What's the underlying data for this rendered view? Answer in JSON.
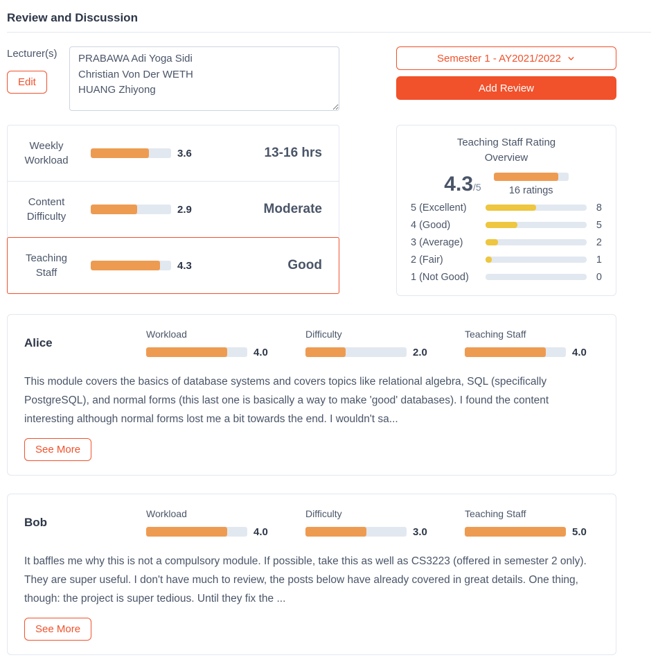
{
  "colors": {
    "accent": "#f1512b",
    "bar-orange": "#ee9b52",
    "bar-yellow": "#eec63f",
    "track": "#e2e8f0",
    "border": "#e2e8f0",
    "text-dark": "#2d3748",
    "text-mid": "#4a5568",
    "text-light": "#718096"
  },
  "page": {
    "title": "Review and Discussion"
  },
  "lecturers": {
    "label": "Lecturer(s)",
    "edit_button": "Edit",
    "names": "PRABAWA Adi Yoga Sidi\nChristian Von Der WETH\nHUANG Zhiyong"
  },
  "controls": {
    "semester_dropdown": "Semester 1 - AY2021/2022",
    "add_review_button": "Add Review"
  },
  "stats": [
    {
      "label": "Weekly Workload",
      "value": "3.6",
      "display": "13-16 hrs"
    },
    {
      "label": "Content Difficulty",
      "value": "2.9",
      "display": "Moderate"
    },
    {
      "label": "Teaching Staff",
      "value": "4.3",
      "display": "Good"
    }
  ],
  "rating_overview": {
    "title": "Teaching Staff Rating Overview",
    "score": "4.3",
    "score_suffix": "/5",
    "ratings_count": "16 ratings",
    "total_ratings": 16,
    "distribution": [
      {
        "label": "5 (Excellent)",
        "count": 8
      },
      {
        "label": "4 (Good)",
        "count": 5
      },
      {
        "label": "3 (Average)",
        "count": 2
      },
      {
        "label": "2 (Fair)",
        "count": 1
      },
      {
        "label": "1 (Not Good)",
        "count": 0
      }
    ]
  },
  "reviews": [
    {
      "author": "Alice",
      "metrics": [
        {
          "label": "Workload",
          "value": "4.0"
        },
        {
          "label": "Difficulty",
          "value": "2.0"
        },
        {
          "label": "Teaching Staff",
          "value": "4.0"
        }
      ],
      "text": "This module covers the basics of database systems and covers topics like relational algebra, SQL (specifically PostgreSQL), and normal forms (this last one is basically a way to make 'good' databases). I found the content interesting although normal forms lost me a bit towards the end. I wouldn't sa...",
      "see_more_button": "See More"
    },
    {
      "author": "Bob",
      "metrics": [
        {
          "label": "Workload",
          "value": "4.0"
        },
        {
          "label": "Difficulty",
          "value": "3.0"
        },
        {
          "label": "Teaching Staff",
          "value": "5.0"
        }
      ],
      "text": "It baffles me why this is not a compulsory module. If possible, take this as well as CS3223 (offered in semester 2 only). They are super useful. I don't have much to review, the posts below have already covered in great details. One thing, though: the project is super tedious. Until they fix the ...",
      "see_more_button": "See More"
    }
  ]
}
